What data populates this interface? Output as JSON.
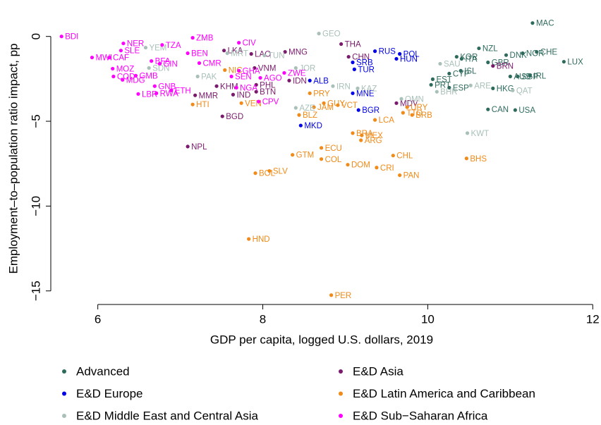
{
  "chart_data": {
    "type": "scatter",
    "xlabel": "GDP per capita, logged U.S. dollars, 2019",
    "ylabel": "Employment–to–population ratio impact, pp",
    "xlim": [
      5.43,
      12.1
    ],
    "ylim": [
      -15.8,
      1.4
    ],
    "xticks": [
      6,
      8,
      10,
      12
    ],
    "yticks": [
      {
        "value": -15,
        "label": "−15"
      },
      {
        "value": -10,
        "label": "−10"
      },
      {
        "value": -5,
        "label": "−5"
      },
      0
    ],
    "series": [
      {
        "name": "Advanced",
        "color": "#2f6b5d",
        "labels": [
          "MAC",
          "CHE",
          "LUX",
          "NOR",
          "IRL",
          "SGP",
          "AUS",
          "CAN",
          "USA",
          "HKG",
          "KOR",
          "NZL",
          "ISL",
          "CYP",
          "EST",
          "PRT",
          "ESP",
          "ITA",
          "GBR",
          "DNK"
        ],
        "x": [
          11.27,
          11.32,
          11.65,
          11.15,
          11.24,
          11.09,
          11.0,
          10.73,
          11.06,
          10.79,
          10.35,
          10.62,
          10.4,
          10.26,
          10.06,
          10.04,
          10.26,
          10.41,
          10.73,
          10.95
        ],
        "values": [
          0.79,
          -0.91,
          -1.49,
          -0.99,
          -2.31,
          -2.36,
          -2.36,
          -4.3,
          -4.34,
          -3.06,
          -1.2,
          -0.7,
          -2.02,
          -2.19,
          -2.52,
          -2.85,
          -3.02,
          -1.32,
          -1.53,
          -1.1
        ]
      },
      {
        "name": "E&D Asia",
        "color": "#7a1a6c",
        "labels": [
          "THA",
          "LKA",
          "LAO",
          "MNG",
          "VNM",
          "KHM",
          "IND",
          "BGD",
          "NPL",
          "MMR",
          "BTN",
          "PHL",
          "IDN",
          "MDV",
          "BRN",
          "CHN"
        ],
        "x": [
          8.95,
          7.53,
          7.86,
          8.27,
          7.9,
          7.44,
          7.64,
          7.51,
          7.09,
          7.18,
          7.92,
          7.92,
          8.32,
          9.62,
          10.79,
          9.04
        ],
        "values": [
          -0.45,
          -0.83,
          -1.03,
          -0.91,
          -1.86,
          -2.93,
          -3.43,
          -4.71,
          -6.49,
          -3.47,
          -3.26,
          -2.85,
          -2.6,
          -3.93,
          -1.74,
          -1.2
        ]
      },
      {
        "name": "E&D Europe",
        "color": "#0000e6",
        "labels": [
          "RUS",
          "POL",
          "HUN",
          "TUR",
          "ALB",
          "MNE",
          "BGR",
          "MKD",
          "SRB"
        ],
        "x": [
          9.36,
          9.66,
          9.62,
          9.11,
          8.57,
          9.09,
          9.16,
          8.46,
          9.09
        ],
        "values": [
          -0.87,
          -1.03,
          -1.32,
          -1.94,
          -2.6,
          -3.35,
          -4.34,
          -5.25,
          -1.53
        ]
      },
      {
        "name": "E&D Latin America and Caribbean",
        "color": "#f08a18",
        "labels": [
          "HND",
          "PER",
          "BOL",
          "SLV",
          "GTM",
          "COL",
          "ECU",
          "DOM",
          "CRI",
          "PAN",
          "CHL",
          "BHS",
          "ARG",
          "MEX",
          "BRA",
          "LCA",
          "BLZ",
          "GUY",
          "VCT",
          "JAM",
          "URY",
          "TTO",
          "BRB",
          "HTI",
          "VEN",
          "NIC",
          "PRY"
        ],
        "x": [
          7.83,
          8.83,
          7.91,
          8.08,
          8.36,
          8.71,
          8.71,
          9.03,
          9.38,
          9.66,
          9.58,
          10.47,
          9.19,
          9.2,
          9.09,
          9.36,
          8.44,
          8.74,
          8.91,
          8.62,
          9.75,
          9.7,
          9.81,
          7.15,
          7.74,
          7.54,
          8.57
        ],
        "values": [
          -11.94,
          -15.25,
          -8.06,
          -7.93,
          -6.98,
          -7.23,
          -6.57,
          -7.56,
          -7.73,
          -8.18,
          -7.02,
          -7.19,
          -6.12,
          -5.83,
          -5.7,
          -4.92,
          -4.63,
          -3.93,
          -4.05,
          -4.17,
          -4.17,
          -4.5,
          -4.63,
          -4.01,
          -3.93,
          -1.98,
          -3.35
        ]
      },
      {
        "name": "E&D Middle East and Central Asia",
        "color": "#a9c0b8",
        "labels": [
          "GEO",
          "MRT",
          "YEM",
          "KWT",
          "QAT",
          "BHR",
          "OMN",
          "KAZ",
          "IRN",
          "AZE",
          "PAK",
          "SDN",
          "TUN",
          "JOR",
          "SAU",
          "ARE"
        ],
        "x": [
          8.68,
          7.57,
          6.58,
          10.48,
          11.03,
          10.11,
          9.68,
          9.15,
          8.85,
          8.4,
          7.21,
          6.62,
          8.02,
          8.4,
          10.15,
          10.52
        ],
        "values": [
          0.17,
          -0.99,
          -0.66,
          -5.7,
          -3.18,
          -3.26,
          -3.68,
          -3.06,
          -2.93,
          -4.21,
          -2.36,
          -1.86,
          -1.12,
          -1.86,
          -1.61,
          -2.89
        ]
      },
      {
        "name": "E&D Sub−Saharan Africa",
        "color": "#ff00ff",
        "labels": [
          "BDI",
          "ZMB",
          "NER",
          "SLE",
          "MWI",
          "CAF",
          "MOZ",
          "TZA",
          "BEN",
          "CIV",
          "GHA",
          "SEN",
          "NGA",
          "CPV",
          "AGO",
          "COD",
          "GMB",
          "MDG",
          "GNB",
          "LBR",
          "RWA",
          "ETH",
          "BFA",
          "GIN",
          "CMR",
          "ZWE"
        ],
        "x": [
          5.56,
          7.15,
          6.31,
          6.28,
          5.93,
          6.14,
          6.18,
          6.78,
          7.09,
          7.71,
          7.71,
          7.62,
          7.68,
          7.95,
          7.97,
          6.19,
          6.46,
          6.3,
          6.69,
          6.49,
          6.71,
          6.89,
          6.65,
          6.75,
          7.23,
          8.26
        ],
        "values": [
          0.0,
          -0.08,
          -0.41,
          -0.83,
          -1.24,
          -1.24,
          -1.9,
          -0.5,
          -0.99,
          -0.37,
          -2.02,
          -2.36,
          -3.02,
          -3.84,
          -2.44,
          -2.36,
          -2.31,
          -2.56,
          -2.93,
          -3.39,
          -3.35,
          -3.18,
          -1.45,
          -1.61,
          -1.57,
          -2.15
        ]
      }
    ]
  }
}
